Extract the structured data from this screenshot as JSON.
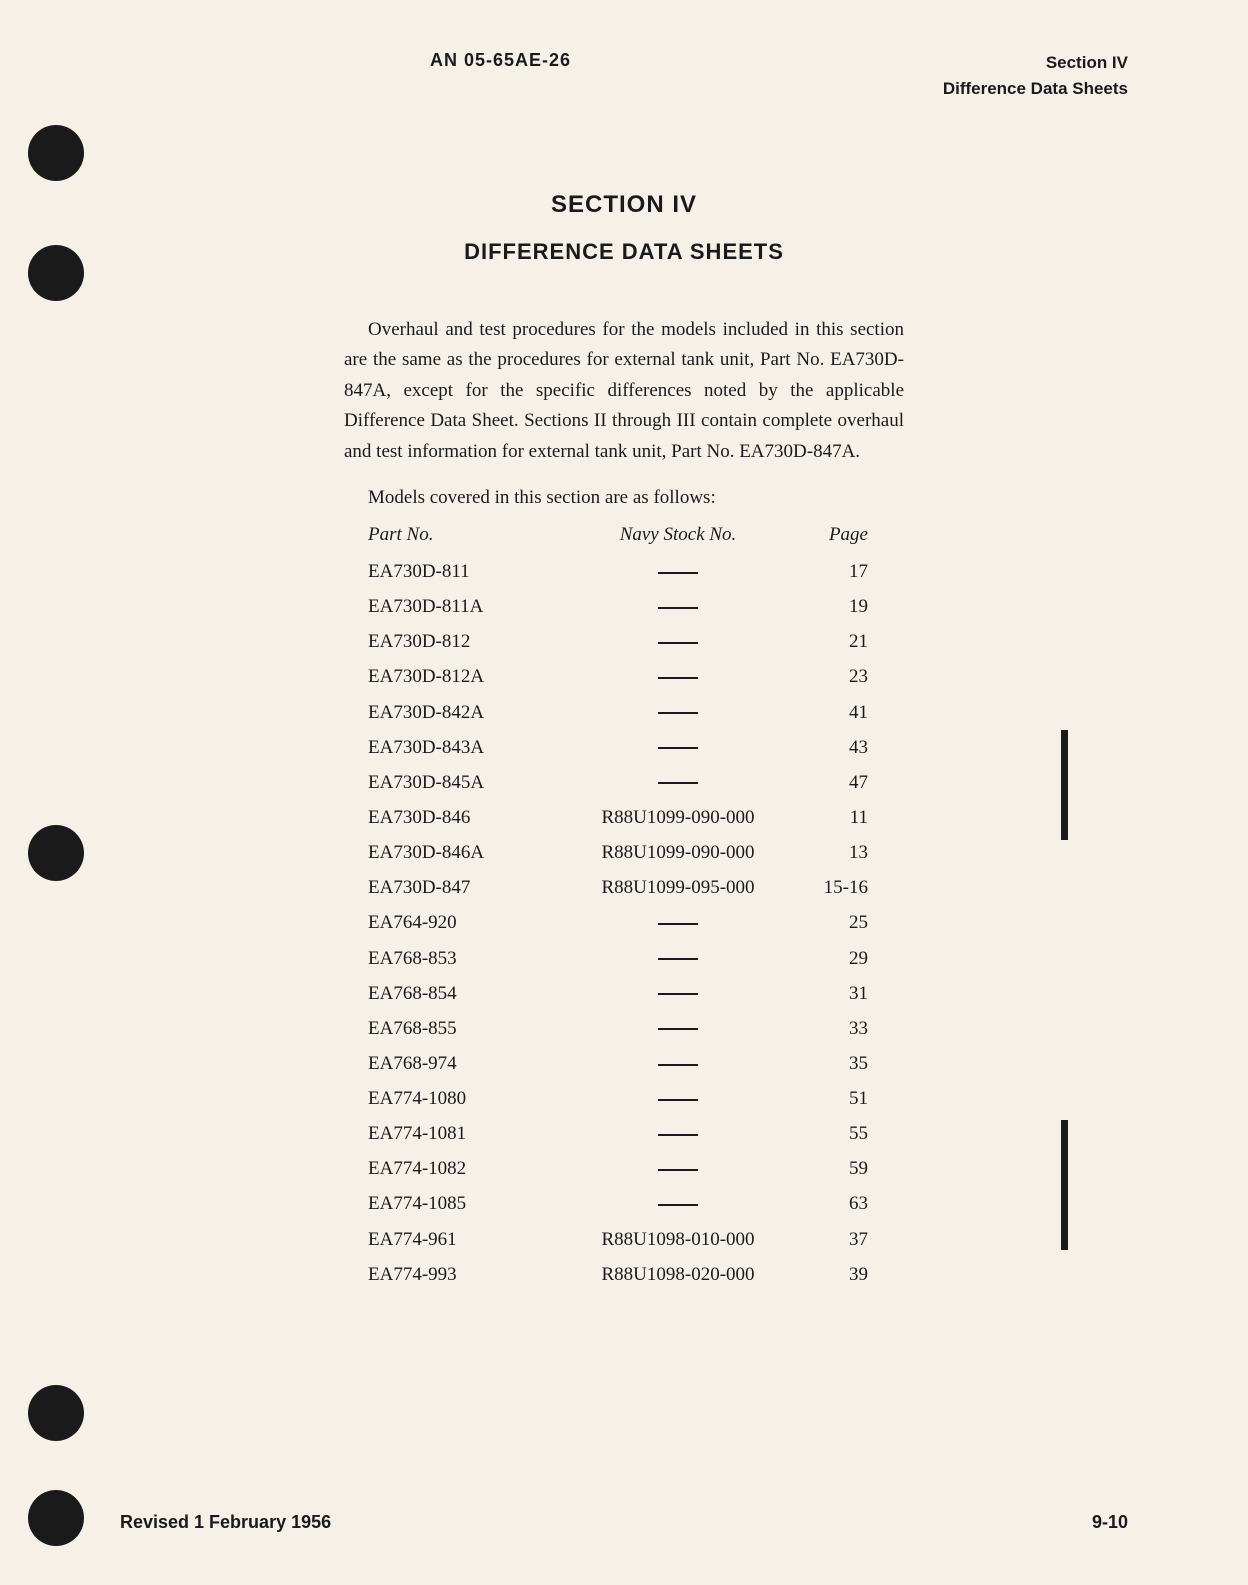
{
  "header": {
    "doc_number": "AN 05-65AE-26",
    "section_label": "Section IV",
    "section_name": "Difference Data Sheets"
  },
  "title": {
    "section": "SECTION IV",
    "subtitle": "DIFFERENCE DATA SHEETS"
  },
  "intro": "Overhaul and test procedures for the models included in this section are the same as the procedures for external tank unit, Part No. EA730D-847A, except for the specific differences noted by the applicable Difference Data Sheet. Sections II through III contain complete overhaul and test information for external tank unit, Part No. EA730D-847A.",
  "models_intro": "Models covered in this section are as follows:",
  "table": {
    "headers": {
      "part": "Part No.",
      "stock": "Navy Stock No.",
      "page": "Page"
    },
    "rows": [
      {
        "part": "EA730D-811",
        "stock": "",
        "page": "17"
      },
      {
        "part": "EA730D-811A",
        "stock": "",
        "page": "19"
      },
      {
        "part": "EA730D-812",
        "stock": "",
        "page": "21"
      },
      {
        "part": "EA730D-812A",
        "stock": "",
        "page": "23"
      },
      {
        "part": "EA730D-842A",
        "stock": "",
        "page": "41"
      },
      {
        "part": "EA730D-843A",
        "stock": "",
        "page": "43"
      },
      {
        "part": "EA730D-845A",
        "stock": "",
        "page": "47"
      },
      {
        "part": "EA730D-846",
        "stock": "R88U1099-090-000",
        "page": "11"
      },
      {
        "part": "EA730D-846A",
        "stock": "R88U1099-090-000",
        "page": "13"
      },
      {
        "part": "EA730D-847",
        "stock": "R88U1099-095-000",
        "page": "15-16"
      },
      {
        "part": "EA764-920",
        "stock": "",
        "page": "25"
      },
      {
        "part": "EA768-853",
        "stock": "",
        "page": "29"
      },
      {
        "part": "EA768-854",
        "stock": "",
        "page": "31"
      },
      {
        "part": "EA768-855",
        "stock": "",
        "page": "33"
      },
      {
        "part": "EA768-974",
        "stock": "",
        "page": "35"
      },
      {
        "part": "EA774-1080",
        "stock": "",
        "page": "51"
      },
      {
        "part": "EA774-1081",
        "stock": "",
        "page": "55"
      },
      {
        "part": "EA774-1082",
        "stock": "",
        "page": "59"
      },
      {
        "part": "EA774-1085",
        "stock": "",
        "page": "63"
      },
      {
        "part": "EA774-961",
        "stock": "R88U1098-010-000",
        "page": "37"
      },
      {
        "part": "EA774-993",
        "stock": "R88U1098-020-000",
        "page": "39"
      }
    ]
  },
  "footer": {
    "revised": "Revised 1 February 1956",
    "page_number": "9-10"
  },
  "colors": {
    "background": "#f5f1e8",
    "text": "#1a1a1a"
  }
}
